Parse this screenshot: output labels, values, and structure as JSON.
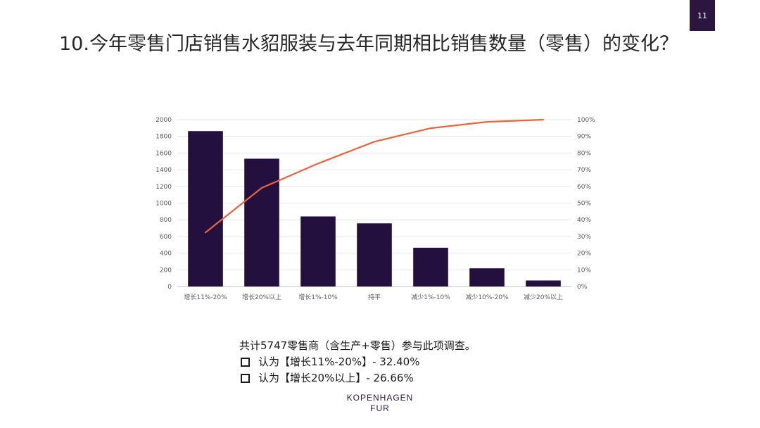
{
  "page_number": "11",
  "title": "10.今年零售门店销售水貂服装与去年同期相比销售数量（零售）的变化？",
  "chart_data": {
    "type": "bar",
    "categories": [
      "增长11%-20%",
      "增长20%以上",
      "增长1%-10%",
      "持平",
      "减少1%-10%",
      "减少10%-20%",
      "减少20%以上"
    ],
    "series": [
      {
        "type": "bar",
        "values": [
          1863,
          1532,
          840,
          757,
          465,
          218,
          72
        ],
        "color": "#24103f",
        "axis": "left"
      },
      {
        "type": "line",
        "values": [
          32.4,
          59.1,
          73.7,
          86.8,
          94.9,
          98.7,
          100.0
        ],
        "color": "#e8643c",
        "axis": "right"
      }
    ],
    "y_left": {
      "min": 0,
      "max": 2000,
      "ticks": [
        0,
        200,
        400,
        600,
        800,
        1000,
        1200,
        1400,
        1600,
        1800,
        2000
      ]
    },
    "y_right": {
      "min": 0,
      "max": 100,
      "ticks": [
        0,
        10,
        20,
        30,
        40,
        50,
        60,
        70,
        80,
        90,
        100
      ],
      "tick_suffix": "%"
    },
    "grid": true,
    "legend": "none"
  },
  "summary": {
    "line1": "共计5747零售商（含生产+零售）参与此项调查。",
    "item1": "认为【增长11%-20%】- 32.40%",
    "item2": "认为【增长20%以上】- 26.66%"
  },
  "logo": {
    "line1": "KOPENHAGEN",
    "line2": "FUR"
  }
}
